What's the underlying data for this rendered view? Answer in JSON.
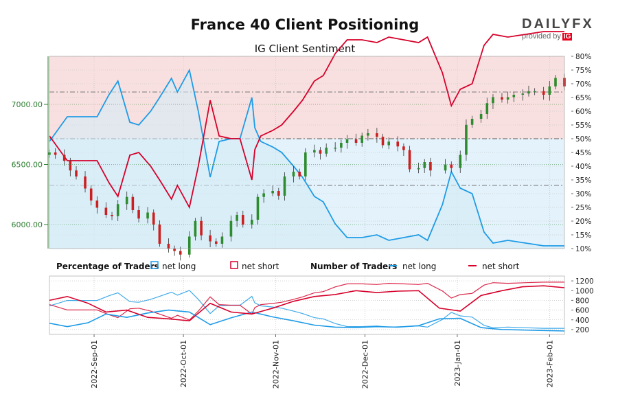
{
  "header": {
    "title": "France 40 Client Positioning",
    "subtitle": "IG Client Sentiment",
    "brand_name": "DAILY",
    "brand_fx": "FX",
    "brand_provided": "provided by",
    "brand_ig": "IG"
  },
  "colors": {
    "net_long": "#1e9be6",
    "net_short": "#d6002a",
    "short_zone": "#f9e0e0",
    "long_zone": "#e3f2fb",
    "candle_up": "#2e8b2e",
    "candle_down": "#cc1f1f",
    "price_axis": "#2e7d32"
  },
  "legend": {
    "percentage_label": "Percentage of Traders",
    "number_label": "Number of Traders",
    "net_long": "net long",
    "net_short": "net short"
  },
  "chart_data": [
    {
      "type": "candlestick+line",
      "title": "IG Client Sentiment",
      "price_axis": {
        "side": "left",
        "range": [
          5800,
          7400
        ],
        "ticks": [
          6000,
          6500,
          7000
        ],
        "tick_labels": [
          "6000.00",
          "6500.00",
          "7000.00"
        ]
      },
      "percent_axis": {
        "side": "right",
        "range": [
          10,
          80
        ],
        "tick_labels": [
          "10%",
          "15%",
          "20%",
          "25%",
          "30%",
          "35%",
          "40%",
          "45%",
          "50%",
          "55%",
          "60%",
          "65%",
          "70%",
          "75%",
          "80%"
        ]
      },
      "date_range": [
        "2022-08-17",
        "2023-02-06"
      ],
      "price_close": [
        [
          "2022-08-17",
          6600
        ],
        [
          "2022-08-19",
          6580
        ],
        [
          "2022-08-22",
          6530
        ],
        [
          "2022-08-24",
          6450
        ],
        [
          "2022-08-26",
          6400
        ],
        [
          "2022-08-29",
          6300
        ],
        [
          "2022-08-31",
          6200
        ],
        [
          "2022-09-02",
          6140
        ],
        [
          "2022-09-05",
          6080
        ],
        [
          "2022-09-07",
          6070
        ],
        [
          "2022-09-09",
          6170
        ],
        [
          "2022-09-12",
          6230
        ],
        [
          "2022-09-14",
          6120
        ],
        [
          "2022-09-16",
          6050
        ],
        [
          "2022-09-19",
          6100
        ],
        [
          "2022-09-21",
          6000
        ],
        [
          "2022-09-23",
          5840
        ],
        [
          "2022-09-26",
          5800
        ],
        [
          "2022-09-28",
          5780
        ],
        [
          "2022-09-30",
          5750
        ],
        [
          "2022-10-03",
          5900
        ],
        [
          "2022-10-05",
          6030
        ],
        [
          "2022-10-07",
          5910
        ],
        [
          "2022-10-10",
          5860
        ],
        [
          "2022-10-12",
          5840
        ],
        [
          "2022-10-14",
          5900
        ],
        [
          "2022-10-17",
          6030
        ],
        [
          "2022-10-19",
          6080
        ],
        [
          "2022-10-21",
          6000
        ],
        [
          "2022-10-24",
          6040
        ],
        [
          "2022-10-26",
          6230
        ],
        [
          "2022-10-28",
          6260
        ],
        [
          "2022-10-31",
          6280
        ],
        [
          "2022-11-02",
          6240
        ],
        [
          "2022-11-04",
          6400
        ],
        [
          "2022-11-07",
          6440
        ],
        [
          "2022-11-09",
          6400
        ],
        [
          "2022-11-11",
          6600
        ],
        [
          "2022-11-14",
          6620
        ],
        [
          "2022-11-16",
          6590
        ],
        [
          "2022-11-18",
          6640
        ],
        [
          "2022-11-21",
          6640
        ],
        [
          "2022-11-23",
          6680
        ],
        [
          "2022-11-25",
          6710
        ],
        [
          "2022-11-28",
          6680
        ],
        [
          "2022-11-30",
          6740
        ],
        [
          "2022-12-02",
          6760
        ],
        [
          "2022-12-05",
          6730
        ],
        [
          "2022-12-07",
          6660
        ],
        [
          "2022-12-09",
          6690
        ],
        [
          "2022-12-12",
          6650
        ],
        [
          "2022-12-14",
          6620
        ],
        [
          "2022-12-16",
          6460
        ],
        [
          "2022-12-19",
          6470
        ],
        [
          "2022-12-21",
          6520
        ],
        [
          "2022-12-23",
          6450
        ],
        [
          "2022-12-28",
          6500
        ],
        [
          "2022-12-30",
          6470
        ],
        [
          "2023-01-02",
          6580
        ],
        [
          "2023-01-04",
          6830
        ],
        [
          "2023-01-06",
          6880
        ],
        [
          "2023-01-09",
          6920
        ],
        [
          "2023-01-11",
          7010
        ],
        [
          "2023-01-13",
          7060
        ],
        [
          "2023-01-16",
          7040
        ],
        [
          "2023-01-18",
          7060
        ],
        [
          "2023-01-20",
          7080
        ],
        [
          "2023-01-23",
          7090
        ],
        [
          "2023-01-25",
          7110
        ],
        [
          "2023-01-27",
          7110
        ],
        [
          "2023-01-30",
          7080
        ],
        [
          "2023-02-01",
          7150
        ],
        [
          "2023-02-03",
          7220
        ],
        [
          "2023-02-06",
          7150
        ]
      ],
      "series": [
        {
          "name": "net long",
          "unit": "%",
          "values": [
            [
              "2022-08-17",
              49
            ],
            [
              "2022-08-23",
              58
            ],
            [
              "2022-08-30",
              58
            ],
            [
              "2022-09-02",
              58
            ],
            [
              "2022-09-06",
              66
            ],
            [
              "2022-09-09",
              71
            ],
            [
              "2022-09-13",
              56
            ],
            [
              "2022-09-16",
              55
            ],
            [
              "2022-09-20",
              60
            ],
            [
              "2022-09-23",
              65
            ],
            [
              "2022-09-27",
              72
            ],
            [
              "2022-09-29",
              67
            ],
            [
              "2022-10-03",
              75
            ],
            [
              "2022-10-06",
              60
            ],
            [
              "2022-10-10",
              36
            ],
            [
              "2022-10-13",
              49
            ],
            [
              "2022-10-17",
              50
            ],
            [
              "2022-10-20",
              50
            ],
            [
              "2022-10-24",
              65
            ],
            [
              "2022-10-25",
              54
            ],
            [
              "2022-10-27",
              49
            ],
            [
              "2022-10-31",
              47
            ],
            [
              "2022-11-03",
              45
            ],
            [
              "2022-11-07",
              40
            ],
            [
              "2022-11-10",
              36
            ],
            [
              "2022-11-14",
              29
            ],
            [
              "2022-11-17",
              27
            ],
            [
              "2022-11-21",
              19
            ],
            [
              "2022-11-25",
              14
            ],
            [
              "2022-11-30",
              14
            ],
            [
              "2022-12-05",
              15
            ],
            [
              "2022-12-09",
              13
            ],
            [
              "2022-12-14",
              14
            ],
            [
              "2022-12-19",
              15
            ],
            [
              "2022-12-22",
              13
            ],
            [
              "2022-12-27",
              26
            ],
            [
              "2022-12-30",
              38
            ],
            [
              "2023-01-02",
              32
            ],
            [
              "2023-01-06",
              30
            ],
            [
              "2023-01-10",
              16
            ],
            [
              "2023-01-13",
              12
            ],
            [
              "2023-01-18",
              13
            ],
            [
              "2023-01-24",
              12
            ],
            [
              "2023-01-30",
              11
            ],
            [
              "2023-02-06",
              11
            ]
          ]
        },
        {
          "name": "net short",
          "unit": "%",
          "values": [
            [
              "2022-08-17",
              51
            ],
            [
              "2022-08-23",
              42
            ],
            [
              "2022-08-30",
              42
            ],
            [
              "2022-09-02",
              42
            ],
            [
              "2022-09-06",
              34
            ],
            [
              "2022-09-09",
              29
            ],
            [
              "2022-09-13",
              44
            ],
            [
              "2022-09-16",
              45
            ],
            [
              "2022-09-20",
              40
            ],
            [
              "2022-09-23",
              35
            ],
            [
              "2022-09-27",
              28
            ],
            [
              "2022-09-29",
              33
            ],
            [
              "2022-10-03",
              25
            ],
            [
              "2022-10-06",
              40
            ],
            [
              "2022-10-10",
              64
            ],
            [
              "2022-10-13",
              51
            ],
            [
              "2022-10-17",
              50
            ],
            [
              "2022-10-20",
              50
            ],
            [
              "2022-10-24",
              35
            ],
            [
              "2022-10-25",
              46
            ],
            [
              "2022-10-27",
              51
            ],
            [
              "2022-10-31",
              53
            ],
            [
              "2022-11-03",
              55
            ],
            [
              "2022-11-07",
              60
            ],
            [
              "2022-11-10",
              64
            ],
            [
              "2022-11-14",
              71
            ],
            [
              "2022-11-17",
              73
            ],
            [
              "2022-11-21",
              81
            ],
            [
              "2022-11-25",
              86
            ],
            [
              "2022-11-30",
              86
            ],
            [
              "2022-12-05",
              85
            ],
            [
              "2022-12-09",
              87
            ],
            [
              "2022-12-14",
              86
            ],
            [
              "2022-12-19",
              85
            ],
            [
              "2022-12-22",
              87
            ],
            [
              "2022-12-27",
              74
            ],
            [
              "2022-12-30",
              62
            ],
            [
              "2023-01-02",
              68
            ],
            [
              "2023-01-06",
              70
            ],
            [
              "2023-01-10",
              84
            ],
            [
              "2023-01-13",
              88
            ],
            [
              "2023-01-18",
              87
            ],
            [
              "2023-01-24",
              88
            ],
            [
              "2023-01-30",
              89
            ],
            [
              "2023-02-06",
              89
            ]
          ]
        }
      ],
      "reference_lines_percent": [
        33,
        50,
        67
      ]
    },
    {
      "type": "line",
      "title": "Number of Traders",
      "y_axis": {
        "side": "right",
        "range": [
          100,
          1300
        ],
        "tick_labels": [
          "200",
          "400",
          "600",
          "800",
          "1000",
          "1200"
        ]
      },
      "x_tick_labels": [
        "2022-Sep-01",
        "2022-Oct-01",
        "2022-Nov-01",
        "2022-Dec-01",
        "2023-Jan-01",
        "2023-Feb-01"
      ],
      "x_tick_dates": [
        "2022-09-01",
        "2022-10-01",
        "2022-11-01",
        "2022-12-01",
        "2023-01-01",
        "2023-02-01"
      ],
      "series": [
        {
          "name": "net long",
          "values": [
            [
              "2022-08-17",
              330
            ],
            [
              "2022-08-23",
              260
            ],
            [
              "2022-08-30",
              340
            ],
            [
              "2022-09-05",
              520
            ],
            [
              "2022-09-12",
              450
            ],
            [
              "2022-09-19",
              540
            ],
            [
              "2022-09-26",
              600
            ],
            [
              "2022-10-03",
              560
            ],
            [
              "2022-10-10",
              300
            ],
            [
              "2022-10-17",
              440
            ],
            [
              "2022-10-24",
              560
            ],
            [
              "2022-10-31",
              460
            ],
            [
              "2022-11-07",
              380
            ],
            [
              "2022-11-14",
              290
            ],
            [
              "2022-11-21",
              250
            ],
            [
              "2022-11-28",
              240
            ],
            [
              "2022-12-05",
              260
            ],
            [
              "2022-12-12",
              250
            ],
            [
              "2022-12-19",
              280
            ],
            [
              "2022-12-26",
              420
            ],
            [
              "2023-01-02",
              430
            ],
            [
              "2023-01-09",
              240
            ],
            [
              "2023-01-16",
              200
            ],
            [
              "2023-01-23",
              190
            ],
            [
              "2023-01-30",
              180
            ],
            [
              "2023-02-06",
              170
            ]
          ]
        },
        {
          "name": "net short",
          "values": [
            [
              "2022-08-17",
              800
            ],
            [
              "2022-08-23",
              880
            ],
            [
              "2022-08-30",
              740
            ],
            [
              "2022-09-05",
              560
            ],
            [
              "2022-09-12",
              600
            ],
            [
              "2022-09-19",
              450
            ],
            [
              "2022-09-26",
              420
            ],
            [
              "2022-10-03",
              380
            ],
            [
              "2022-10-10",
              740
            ],
            [
              "2022-10-17",
              560
            ],
            [
              "2022-10-24",
              520
            ],
            [
              "2022-10-31",
              640
            ],
            [
              "2022-11-07",
              780
            ],
            [
              "2022-11-14",
              880
            ],
            [
              "2022-11-21",
              920
            ],
            [
              "2022-11-28",
              1000
            ],
            [
              "2022-12-05",
              960
            ],
            [
              "2022-12-12",
              990
            ],
            [
              "2022-12-19",
              1000
            ],
            [
              "2022-12-26",
              640
            ],
            [
              "2023-01-02",
              580
            ],
            [
              "2023-01-09",
              900
            ],
            [
              "2023-01-16",
              1000
            ],
            [
              "2023-01-23",
              1080
            ],
            [
              "2023-01-30",
              1100
            ],
            [
              "2023-02-06",
              1060
            ]
          ]
        }
      ]
    }
  ]
}
